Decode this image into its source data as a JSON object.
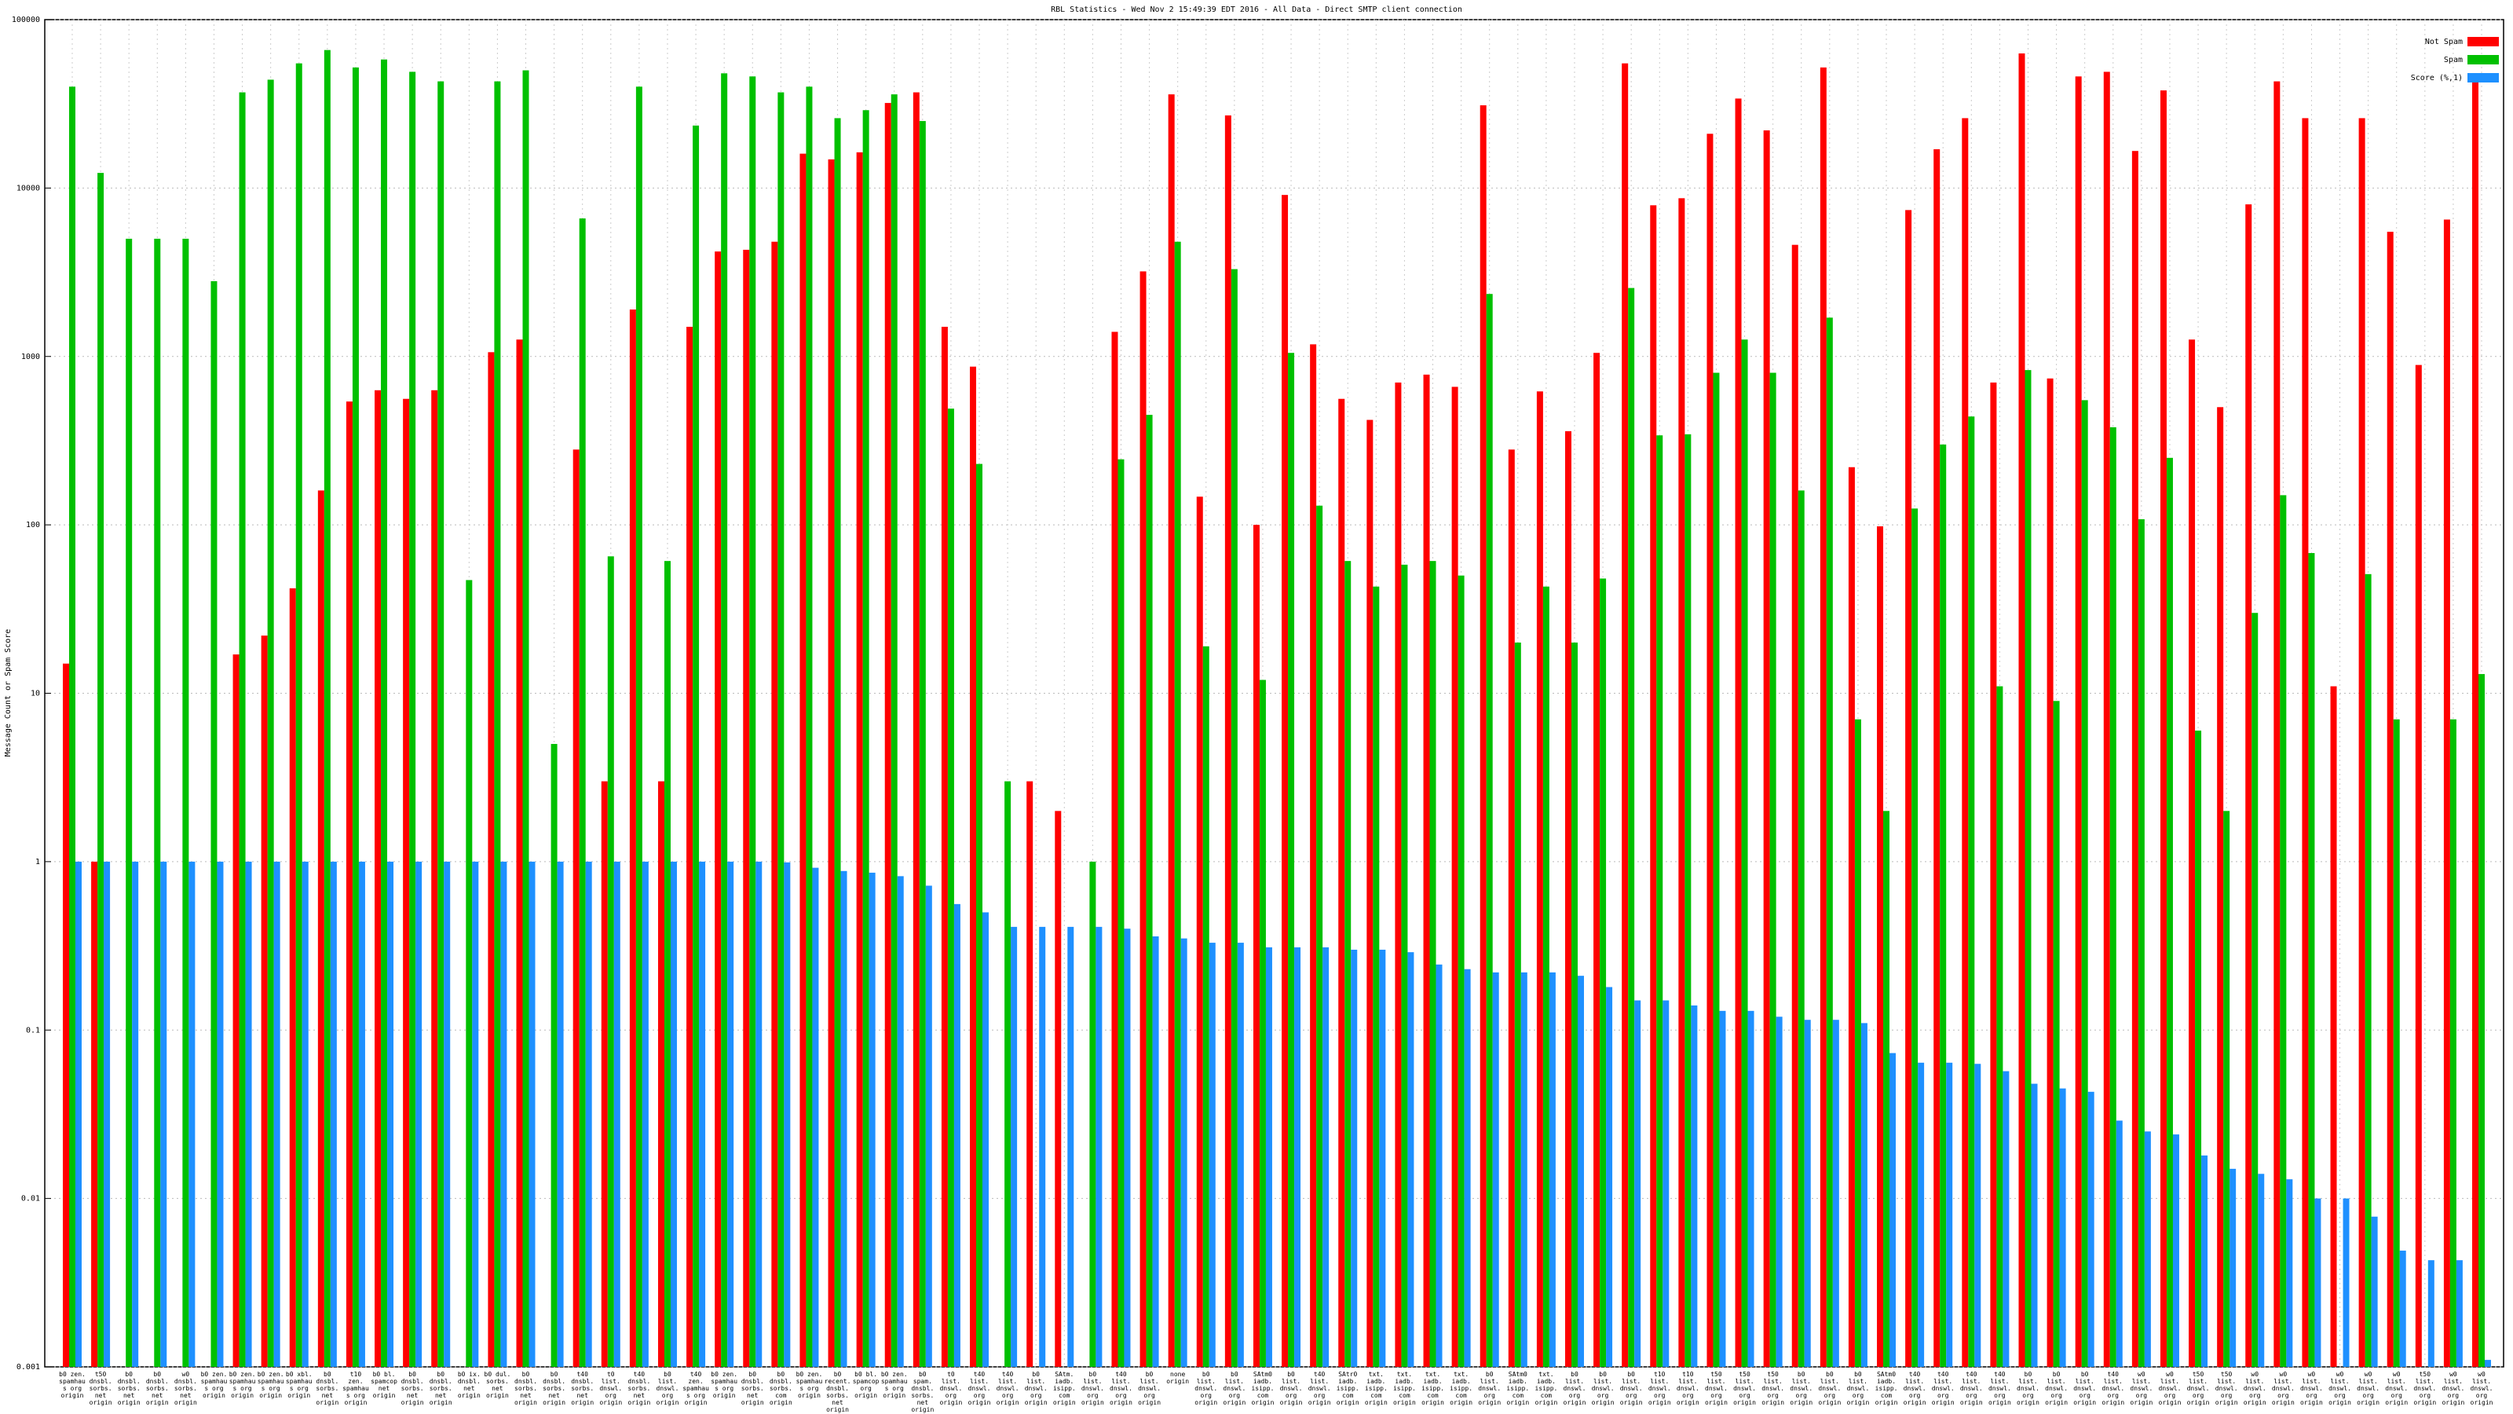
{
  "chart_data": {
    "type": "bar",
    "title": "RBL Statistics - Wed Nov  2 15:49:39 EDT 2016 - All Data - Direct SMTP client connection",
    "y_label": "Message Count or Spam Score",
    "log_scale": true,
    "grid": true,
    "legend_position": "top-right",
    "ylim": [
      0.001,
      100000
    ],
    "yticks": [
      0.001,
      0.01,
      0.1,
      1,
      10,
      100,
      1000,
      10000,
      100000
    ],
    "categories": [
      "b0 zen. spamhaus org origin",
      "t50 dnsbl. sorbs. net origin",
      "b0 dnsbl. sorbs. net origin",
      "b0 dnsbl. sorbs. net origin",
      "w0 dnsbl. sorbs. net origin",
      "b0 zen. spamhaus org origin",
      "b0 zen. spamhaus org origin",
      "b0 zen. spamhaus org origin",
      "b0 xbl. spamhaus org origin",
      "b0 dnsbl. sorbs. net origin",
      "t10 zen. spamhaus org origin",
      "b0 bl. spamcop net origin",
      "b0 dnsbl. sorbs. net origin",
      "b0 dnsbl. sorbs. net origin",
      "b0 ix. dnsbl. net origin",
      "b0 dul. sorbs. net origin",
      "b0 dnsbl. sorbs. net origin",
      "b0 dnsbl. sorbs. net origin",
      "t40 dnsbl. sorbs. net origin",
      "t0 list. dnswl. org origin",
      "t40 dnsbl. sorbs. net origin",
      "b0 list. dnswl. org origin",
      "t40 zen. spamhaus org origin",
      "b0 zen. spamhaus org origin",
      "b0 dnsbl. sorbs. net origin",
      "b0 dnsbl. sorbs. com origin",
      "b0 zen. spamhaus org origin",
      "b0 recent. dnsbl. sorbs. net origin",
      "b0 bl. spamcop org origin",
      "b0 zen. spamhaus org origin",
      "b0 spam. dnsbl. sorbs. net origin",
      "t0 list. dnswl. org origin",
      "t40 list. dnswl. org origin",
      "t40 list. dnswl. org origin",
      "b0 list. dnswl. org origin",
      "SAtm. iadb. isipp. com origin",
      "b0 list. dnswl. org origin",
      "t40 list. dnswl. org origin",
      "b0 list. dnswl. org origin",
      "none origin",
      "b0 list. dnswl. org origin",
      "b0 list. dnswl. org origin",
      "SAtm0 iadb. isipp. com origin",
      "b0 list. dnswl. org origin",
      "t40 list. dnswl. org origin",
      "SAtr0 iadb. isipp. com origin",
      "txt. iadb. isipp. com origin",
      "txt. iadb. isipp. com origin",
      "txt. iadb. isipp. com origin",
      "txt. iadb. isipp. com origin",
      "b0 list. dnswl. org origin",
      "SAtm0 iadb. isipp. com origin",
      "txt. iadb. isipp. com origin",
      "b0 list. dnswl. org origin",
      "b0 list. dnswl. org origin",
      "b0 list. dnswl. org origin",
      "t10 list. dnswl. org origin",
      "t10 list. dnswl. org origin",
      "t50 list. dnswl. org origin",
      "t50 list. dnswl. org origin",
      "t50 list. dnswl. org origin",
      "b0 list. dnswl. org origin",
      "b0 list. dnswl. org origin",
      "b0 list. dnswl. org origin",
      "SAtm0 iadb. isipp. com origin",
      "t40 list. dnswl. org origin",
      "t40 list. dnswl. org origin",
      "t40 list. dnswl. org origin",
      "t40 list. dnswl. org origin",
      "b0 list. dnswl. org origin",
      "b0 list. dnswl. org origin",
      "b0 list. dnswl. org origin",
      "t40 list. dnswl. org origin",
      "w0 list. dnswl. org origin",
      "w0 list. dnswl. org origin",
      "t50 list. dnswl. org origin",
      "t50 list. dnswl. org origin",
      "w0 list. dnswl. org origin",
      "w0 list. dnswl. org origin",
      "w0 list. dnswl. org origin",
      "w0 list. dnswl. org origin",
      "w0 list. dnswl. org origin",
      "w0 list. dnswl. org origin",
      "t50 list. dnswl. org origin",
      "w0 list. dnswl. org origin",
      "w0 list. dnswl. org origin"
    ],
    "series": [
      {
        "name": "Not Spam",
        "color": "#ff0000",
        "values": [
          15,
          1,
          null,
          null,
          null,
          null,
          17,
          22,
          42,
          160,
          540,
          630,
          560,
          630,
          null,
          1060,
          1260,
          null,
          280,
          3,
          1900,
          3,
          1500,
          4200,
          4300,
          4800,
          16000,
          14800,
          16300,
          32000,
          37000,
          1500,
          870,
          null,
          3,
          2,
          null,
          1400,
          3200,
          36000,
          147,
          27000,
          100,
          9100,
          1180,
          560,
          420,
          700,
          780,
          660,
          31000,
          280,
          620,
          360,
          1050,
          55000,
          7900,
          8700,
          21000,
          34000,
          22000,
          4600,
          52000,
          220,
          98,
          7400,
          17000,
          26000,
          700,
          63000,
          740,
          46000,
          49000,
          16600,
          38000,
          1260,
          500,
          8000,
          43000,
          26000,
          11,
          26000,
          5500,
          890,
          6500,
          45000
        ]
      },
      {
        "name": "Spam",
        "color": "#00c000",
        "values": [
          40000,
          12300,
          5000,
          5000,
          5000,
          2800,
          37000,
          44000,
          55000,
          66000,
          52000,
          58000,
          49000,
          43000,
          47,
          43000,
          50000,
          5,
          6600,
          65,
          40000,
          61,
          23500,
          48000,
          46000,
          37000,
          40000,
          26000,
          29000,
          36000,
          25000,
          490,
          230,
          3,
          null,
          null,
          1,
          245,
          450,
          4800,
          19,
          3300,
          12,
          1050,
          130,
          61,
          43,
          58,
          61,
          50,
          2350,
          20,
          43,
          20,
          48,
          2550,
          340,
          345,
          800,
          1260,
          800,
          160,
          1700,
          7,
          2,
          125,
          300,
          440,
          11,
          830,
          9,
          550,
          380,
          108,
          250,
          6,
          2,
          30,
          150,
          68,
          null,
          51,
          7,
          null,
          7,
          13
        ]
      },
      {
        "name": "Score (%,1)",
        "color": "#1e90ff",
        "values": [
          1,
          1,
          1,
          1,
          1,
          1,
          1,
          1,
          1,
          1,
          1,
          1,
          1,
          1,
          1,
          1,
          1,
          1,
          1,
          1,
          1,
          1,
          1,
          1,
          1,
          0.99,
          0.92,
          0.88,
          0.86,
          0.82,
          0.72,
          0.56,
          0.5,
          0.41,
          0.41,
          0.41,
          0.41,
          0.4,
          0.36,
          0.35,
          0.33,
          0.33,
          0.31,
          0.31,
          0.31,
          0.3,
          0.3,
          0.29,
          0.245,
          0.23,
          0.22,
          0.22,
          0.22,
          0.21,
          0.18,
          0.15,
          0.15,
          0.14,
          0.13,
          0.13,
          0.12,
          0.115,
          0.115,
          0.11,
          0.073,
          0.064,
          0.064,
          0.063,
          0.057,
          0.048,
          0.045,
          0.043,
          0.029,
          0.025,
          0.024,
          0.018,
          0.015,
          0.014,
          0.013,
          0.01,
          0.01,
          0.0078,
          0.0049,
          0.0043,
          0.0043,
          0.0011
        ]
      }
    ]
  }
}
